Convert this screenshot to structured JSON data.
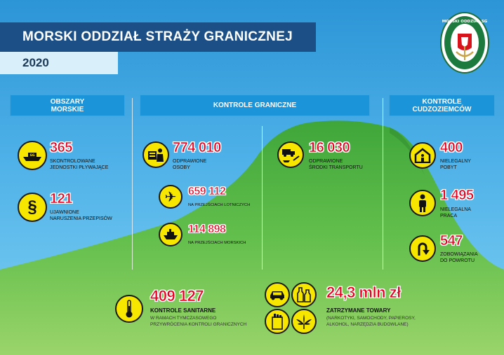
{
  "header": {
    "title": "MORSKI ODDZIAŁ STRAŻY GRANICZNEJ",
    "year": "2020",
    "emblem_text": "MORSKI ODDZIAŁ SG"
  },
  "sections": {
    "sea": "OBSZARY MORSKIE",
    "border": "KONTROLE GRANICZNE",
    "foreigners": "KONTROLE CUDZOZIEMCÓW"
  },
  "sea_stats": [
    {
      "value": "365",
      "label_lines": [
        "SKONTROLOWANE",
        "JEDNOSTKI PŁYWAJĄCE"
      ],
      "icon": "patrol-boat-icon"
    },
    {
      "value": "121",
      "label_lines": [
        "UJAWNIONE",
        "NARUSZENIA PRZEPISÓW"
      ],
      "icon": "paragraph-icon"
    }
  ],
  "border_stats": {
    "persons": {
      "value": "774 010",
      "label_lines": [
        "ODPRAWIONE",
        "OSOBY"
      ],
      "icon": "border-officer-icon"
    },
    "airports": {
      "value": "659 112",
      "label": "NA PRZEJŚCIACH LOTNICZYCH",
      "icon": "airplane-icon"
    },
    "seaports": {
      "value": "114 898",
      "label": "NA PRZEJŚCIACH MORSKICH",
      "icon": "ship-icon"
    },
    "transport": {
      "value": "16 030",
      "label_lines": [
        "ODPRAWIONE",
        "ŚRODKI TRANSPORTU"
      ],
      "icon": "transport-icon"
    }
  },
  "foreigner_stats": [
    {
      "value": "400",
      "label_lines": [
        "NIELEGALNY",
        "POBYT"
      ],
      "icon": "house-icon"
    },
    {
      "value": "1 495",
      "label_lines": [
        "NIELEGALNA",
        "PRACA"
      ],
      "icon": "worker-icon"
    },
    {
      "value": "547",
      "label_lines": [
        "ZOBOWIĄZANIA",
        "DO POWROTU"
      ],
      "icon": "u-turn-icon"
    }
  ],
  "bottom": {
    "sanitary": {
      "value": "409 127",
      "title": "KONTROLE SANITARNE",
      "desc_lines": [
        "W RAMACH TYMCZASOWEGO",
        "PRZYWRÓCENIA KONTROLI GRANICZNYCH"
      ],
      "icon": "thermometer-icon"
    },
    "goods": {
      "value": "24,3 mln zł",
      "title": "ZATRZYMANE TOWARY",
      "desc_lines": [
        "(NARKOTYKI, SAMOCHODY, PAPIEROSY,",
        "ALKOHOL, NARZĘDZIA BUDOWLANE)"
      ],
      "icons": [
        "car-icon",
        "bottles-icon",
        "cigarettes-icon",
        "cannabis-leaf-icon"
      ]
    }
  },
  "colors": {
    "header_bg": "#1b4f86",
    "section_bg": "#1c94da",
    "value_red": "#e6001f",
    "icon_yellow": "#f7e600",
    "hill_green": "#58b847"
  }
}
